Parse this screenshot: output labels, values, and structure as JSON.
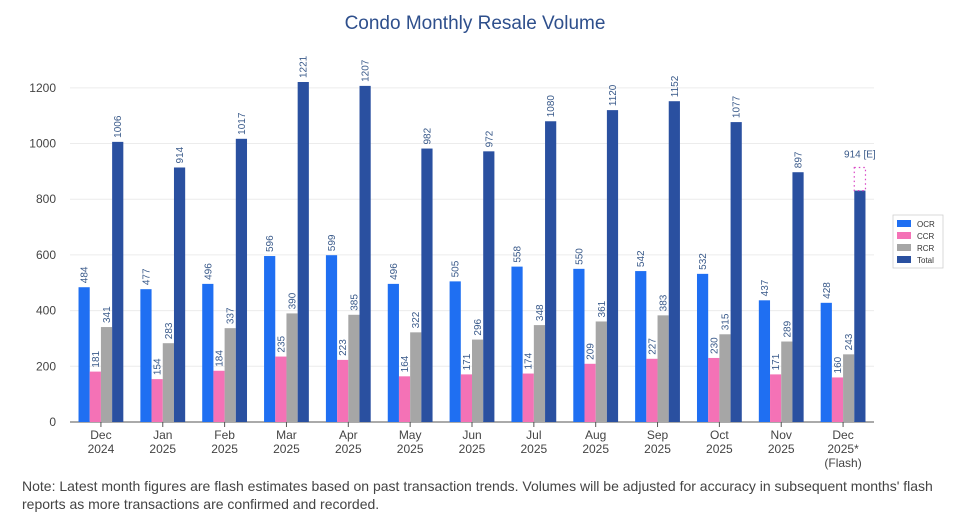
{
  "chart_data": {
    "type": "bar",
    "title": "Condo Monthly Resale Volume",
    "categories": [
      [
        "Dec",
        "2024"
      ],
      [
        "Jan",
        "2025"
      ],
      [
        "Feb",
        "2025"
      ],
      [
        "Mar",
        "2025"
      ],
      [
        "Apr",
        "2025"
      ],
      [
        "May",
        "2025"
      ],
      [
        "Jun",
        "2025"
      ],
      [
        "Jul",
        "2025"
      ],
      [
        "Aug",
        "2025"
      ],
      [
        "Sep",
        "2025"
      ],
      [
        "Oct",
        "2025"
      ],
      [
        "Nov",
        "2025"
      ],
      [
        "Dec",
        "2025*",
        "(Flash)"
      ]
    ],
    "series": [
      {
        "name": "OCR",
        "color": "#1f6ff2",
        "values": [
          484,
          477,
          496,
          596,
          599,
          496,
          505,
          558,
          550,
          542,
          532,
          437,
          428
        ]
      },
      {
        "name": "CCR",
        "color": "#f472b6",
        "values": [
          181,
          154,
          184,
          235,
          223,
          164,
          171,
          174,
          209,
          227,
          230,
          171,
          160
        ]
      },
      {
        "name": "RCR",
        "color": "#a6a6a6",
        "values": [
          341,
          283,
          337,
          390,
          385,
          322,
          296,
          348,
          361,
          383,
          315,
          289,
          243
        ]
      },
      {
        "name": "Total",
        "color": "#2a50a0",
        "values": [
          1006,
          914,
          1017,
          1221,
          1207,
          982,
          972,
          1080,
          1120,
          1152,
          1077,
          897,
          831
        ]
      }
    ],
    "data_labels": {
      "Total": [
        "1006",
        "914",
        "1017",
        "1221",
        "1207",
        "982",
        "972",
        "1080",
        "1120",
        "1152",
        "1077",
        "897",
        ""
      ]
    },
    "estimate": {
      "value": 914,
      "label": "914 [E]",
      "color": "#d946c5"
    },
    "ylim": [
      0,
      1300
    ],
    "yticks": [
      0,
      200,
      400,
      600,
      800,
      1000,
      1200
    ],
    "legend": "right",
    "grid": true
  },
  "note": "Note: Latest month figures are flash estimates based on past transaction trends. Volumes will be adjusted for accuracy in subsequent months' flash reports as more transactions are confirmed and recorded."
}
